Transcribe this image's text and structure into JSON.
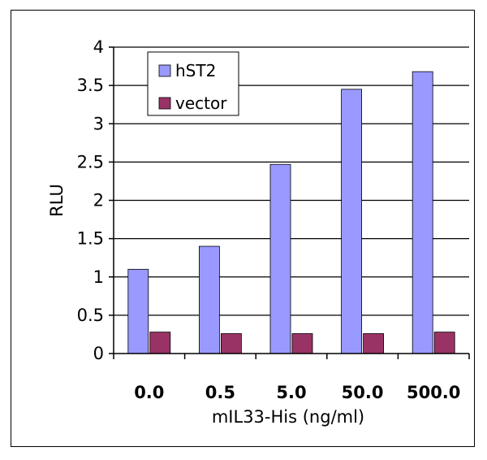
{
  "chart_data": {
    "type": "bar",
    "title": "",
    "categories": [
      "0.0",
      "0.5",
      "5.0",
      "50.0",
      "500.0"
    ],
    "series": [
      {
        "name": "hST2",
        "values": [
          1.1,
          1.4,
          2.47,
          3.45,
          3.68
        ],
        "color": "#9999ff"
      },
      {
        "name": "vector",
        "values": [
          0.28,
          0.26,
          0.26,
          0.26,
          0.28
        ],
        "color": "#993366"
      }
    ],
    "xlabel": "mIL33-His (ng/ml)",
    "ylabel": "RLU",
    "ylim": [
      0,
      4
    ],
    "yticks": [
      "0",
      "0.5",
      "1",
      "1.5",
      "2",
      "2.5",
      "3",
      "3.5",
      "4"
    ],
    "grid": true,
    "legend": "top-left"
  }
}
